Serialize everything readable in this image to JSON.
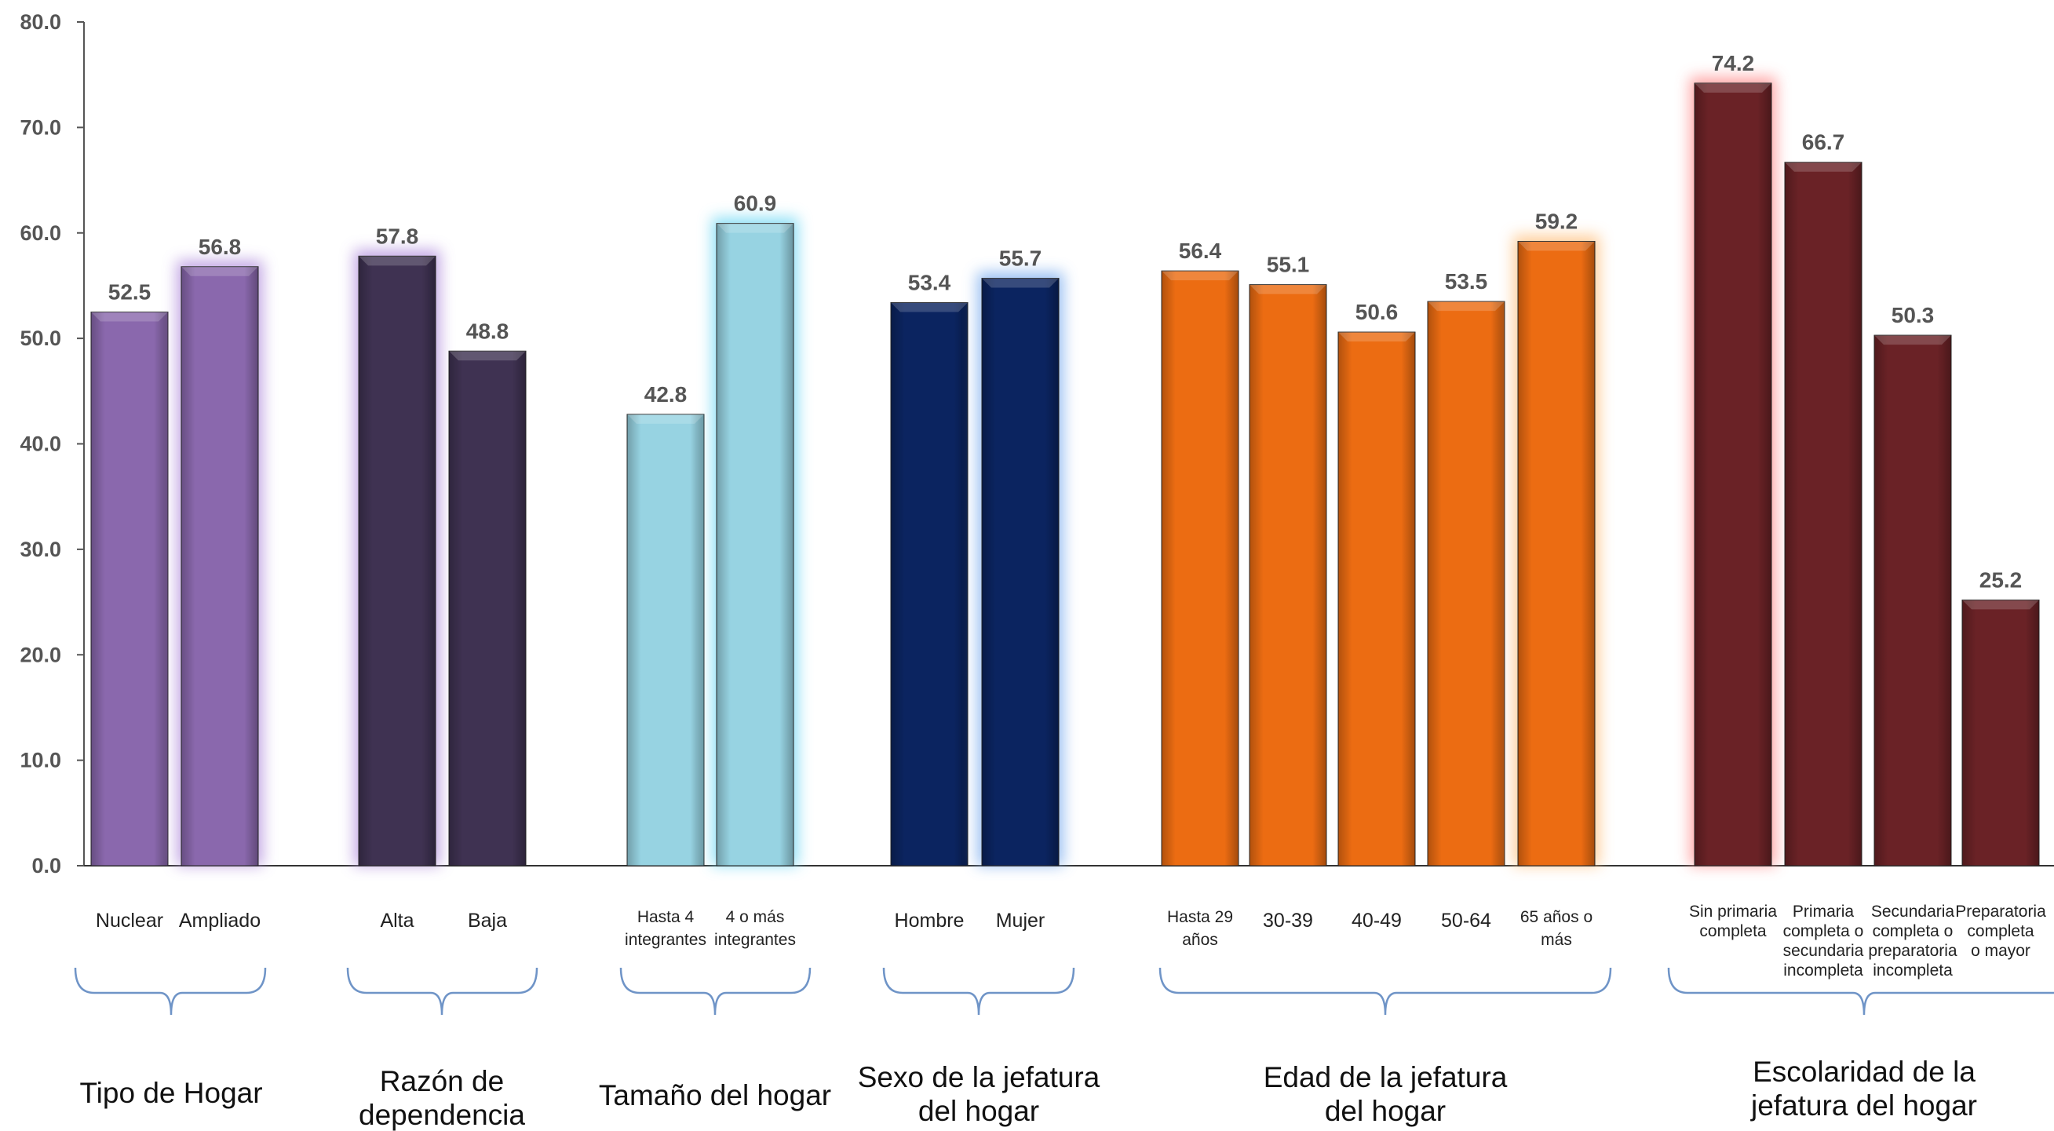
{
  "chart_data": {
    "type": "bar",
    "ylim": [
      0,
      80
    ],
    "yticks": [
      "0.0",
      "10.0",
      "20.0",
      "30.0",
      "40.0",
      "50.0",
      "60.0",
      "70.0",
      "80.0"
    ],
    "ytick_values": [
      0,
      10,
      20,
      30,
      40,
      50,
      60,
      70,
      80
    ],
    "groups": [
      {
        "label_lines": [
          "Tipo de Hogar"
        ],
        "bars": [
          {
            "category_lines": [
              "Nuclear"
            ],
            "value": 52.5,
            "label": "52.5",
            "color": "#8a68ad",
            "glow": null
          },
          {
            "category_lines": [
              "Ampliado"
            ],
            "value": 56.8,
            "label": "56.8",
            "color": "#8a68ad",
            "glow": "#b99ae0"
          }
        ]
      },
      {
        "label_lines": [
          "Razón de",
          "dependencia"
        ],
        "bars": [
          {
            "category_lines": [
              "Alta"
            ],
            "value": 57.8,
            "label": "57.8",
            "color": "#3f3252",
            "glow": "#b99ae0"
          },
          {
            "category_lines": [
              "Baja"
            ],
            "value": 48.8,
            "label": "48.8",
            "color": "#3f3252",
            "glow": null
          }
        ]
      },
      {
        "label_lines": [
          "Tamaño del hogar"
        ],
        "bars": [
          {
            "category_lines": [
              "Hasta 4",
              "integrantes"
            ],
            "value": 42.8,
            "label": "42.8",
            "color": "#97d3e2",
            "glow": null
          },
          {
            "category_lines": [
              "4 o más",
              "integrantes"
            ],
            "value": 60.9,
            "label": "60.9",
            "color": "#97d3e2",
            "glow": "#7fdcf5"
          }
        ]
      },
      {
        "label_lines": [
          "Sexo de la jefatura",
          "del hogar"
        ],
        "bars": [
          {
            "category_lines": [
              "Hombre"
            ],
            "value": 53.4,
            "label": "53.4",
            "color": "#0b2460",
            "glow": null
          },
          {
            "category_lines": [
              "Mujer"
            ],
            "value": 55.7,
            "label": "55.7",
            "color": "#0b2460",
            "glow": "#8ab6f0"
          }
        ]
      },
      {
        "label_lines": [
          "Edad de la jefatura",
          "del hogar"
        ],
        "bars": [
          {
            "category_lines": [
              "Hasta 29",
              "años"
            ],
            "value": 56.4,
            "label": "56.4",
            "color": "#ec6c12",
            "glow": null
          },
          {
            "category_lines": [
              "30-39"
            ],
            "value": 55.1,
            "label": "55.1",
            "color": "#ec6c12",
            "glow": null
          },
          {
            "category_lines": [
              "40-49"
            ],
            "value": 50.6,
            "label": "50.6",
            "color": "#ec6c12",
            "glow": null
          },
          {
            "category_lines": [
              "50-64"
            ],
            "value": 53.5,
            "label": "53.5",
            "color": "#ec6c12",
            "glow": null
          },
          {
            "category_lines": [
              "65 años o",
              "más"
            ],
            "value": 59.2,
            "label": "59.2",
            "color": "#ec6c12",
            "glow": "#ffc78c"
          }
        ]
      },
      {
        "label_lines": [
          "Escolaridad de la",
          "jefatura del hogar"
        ],
        "bars": [
          {
            "category_lines": [
              "Sin primaria",
              "completa"
            ],
            "value": 74.2,
            "label": "74.2",
            "color": "#6a2226",
            "glow": "#ff9a9a"
          },
          {
            "category_lines": [
              "Primaria",
              "completa o",
              "secundaria",
              "incompleta"
            ],
            "value": 66.7,
            "label": "66.7",
            "color": "#6a2226",
            "glow": null
          },
          {
            "category_lines": [
              "Secundaria",
              "completa o",
              "preparatoria",
              "incompleta"
            ],
            "value": 50.3,
            "label": "50.3",
            "color": "#6a2226",
            "glow": null
          },
          {
            "category_lines": [
              "Preparatoria",
              "completa",
              "o mayor"
            ],
            "value": 25.2,
            "label": "25.2",
            "color": "#6a2226",
            "glow": null
          }
        ]
      }
    ]
  }
}
